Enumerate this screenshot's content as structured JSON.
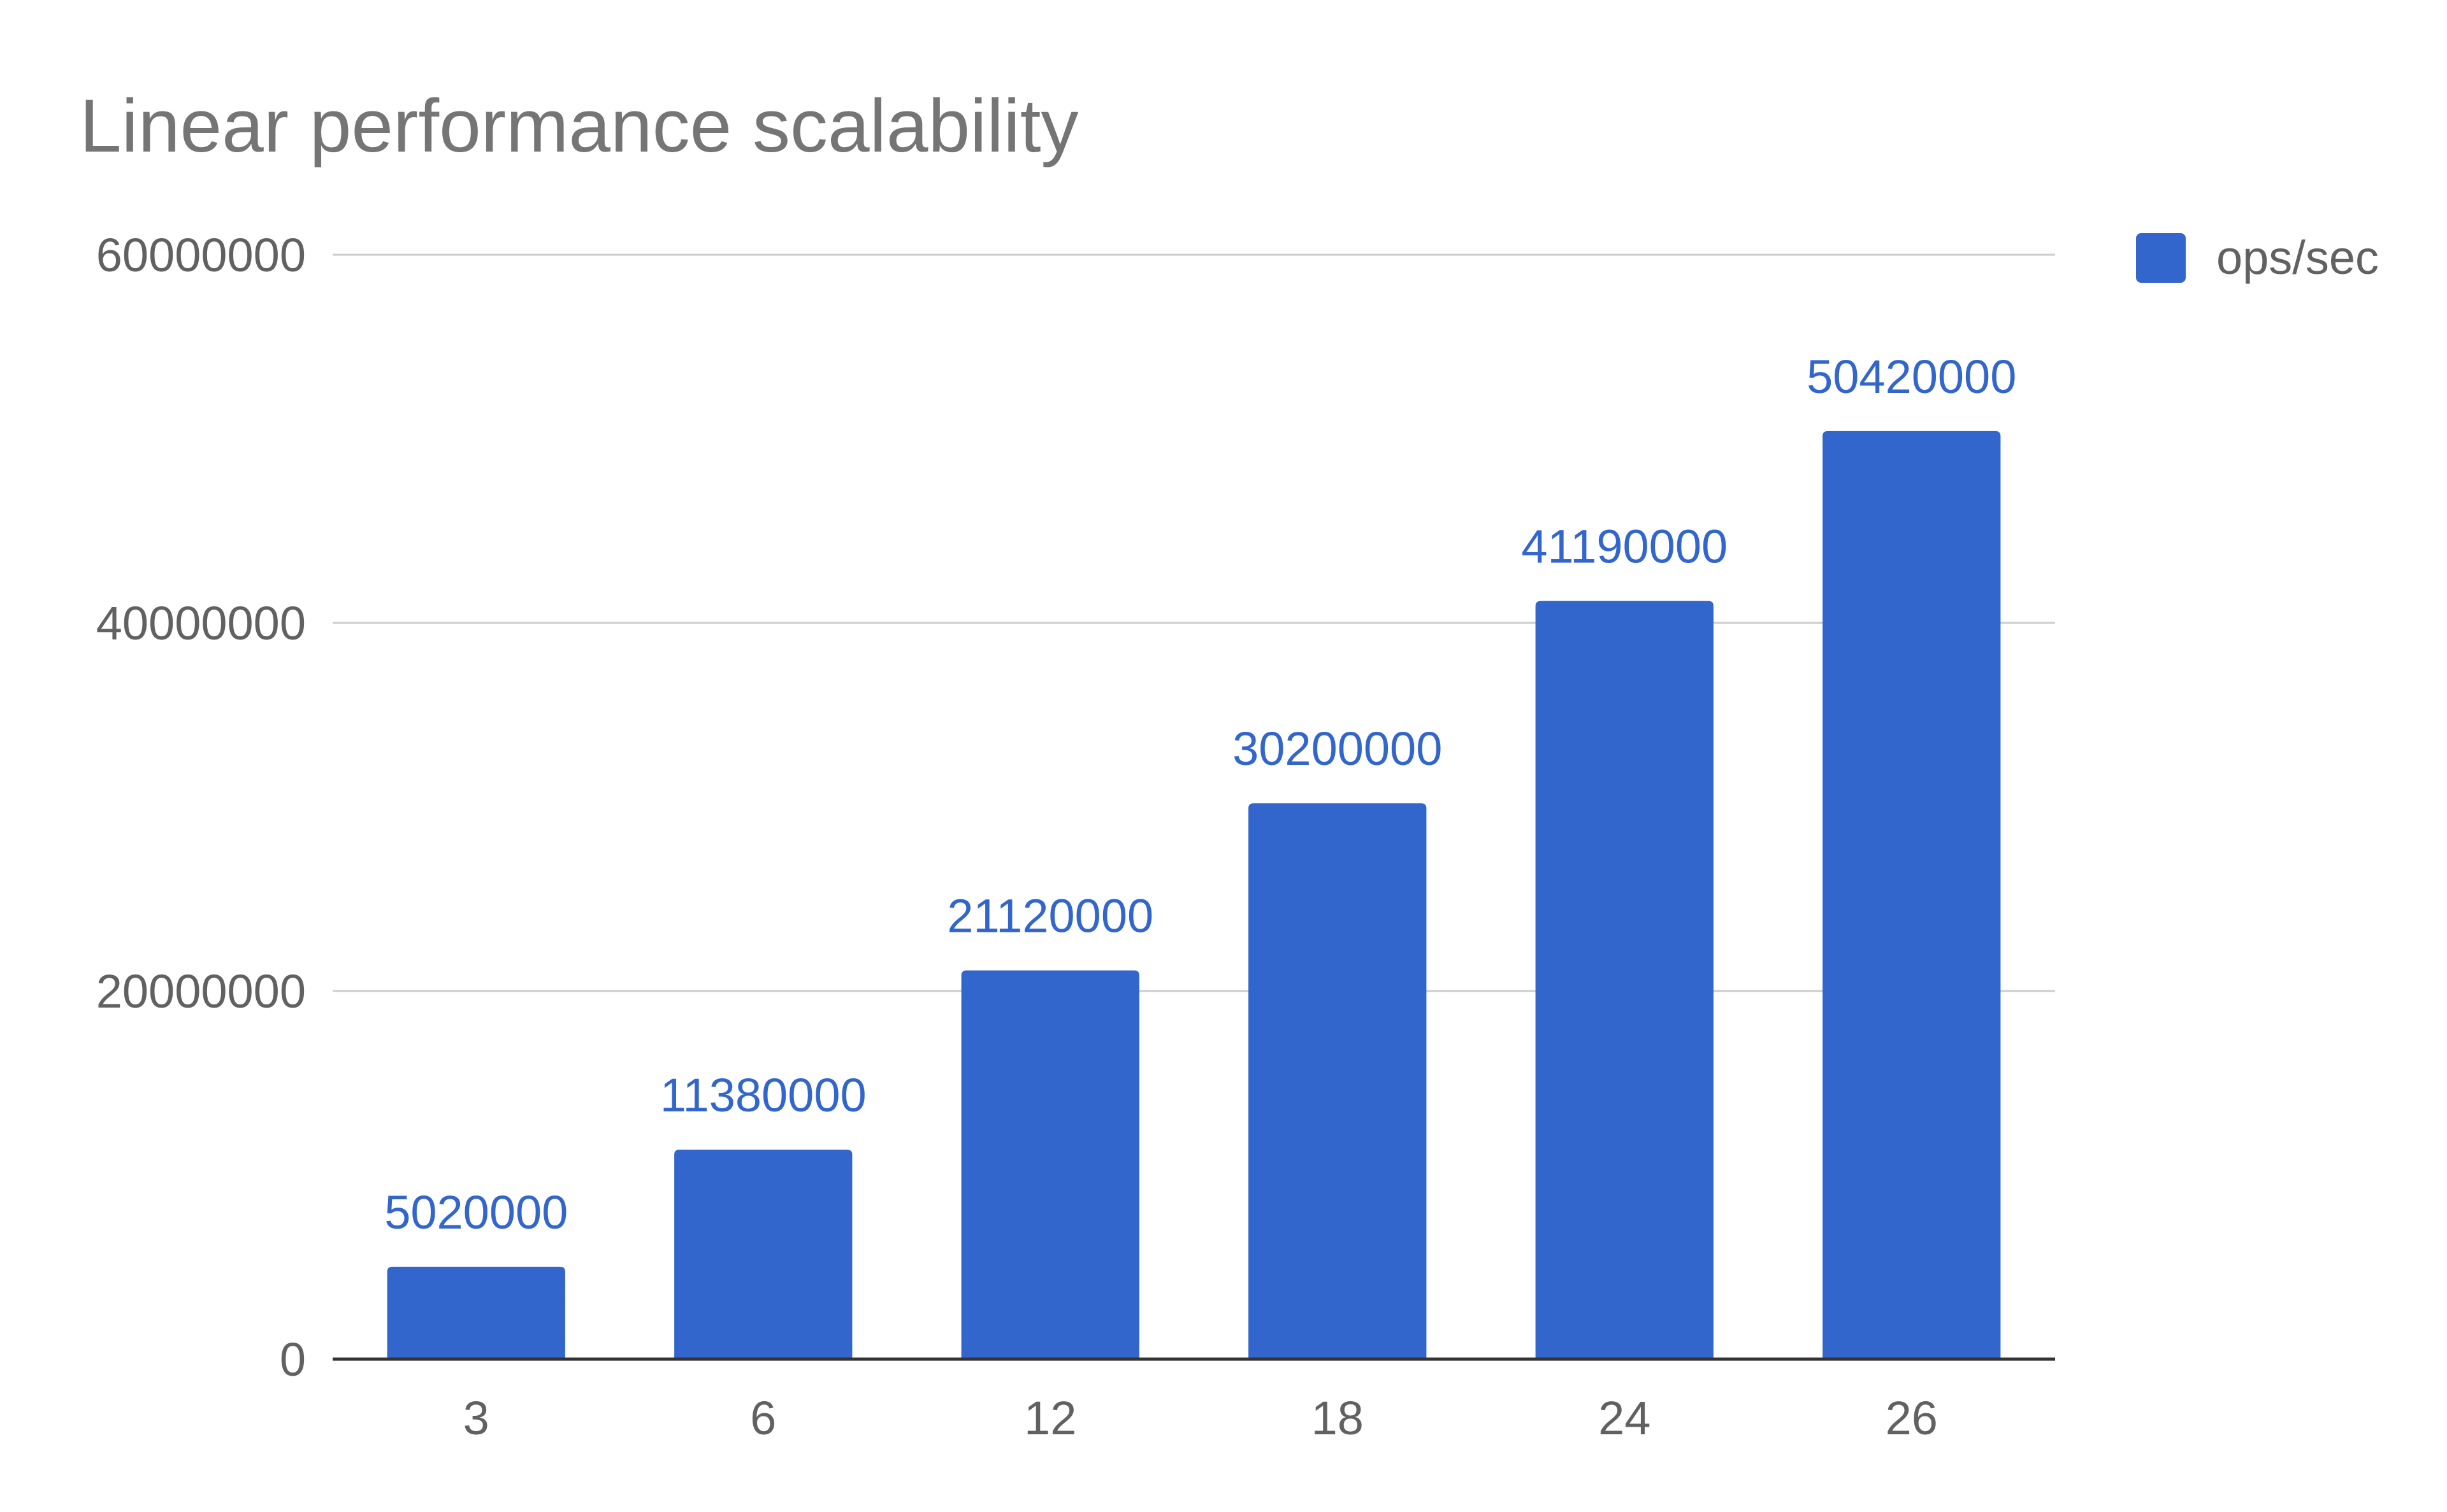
{
  "chart_data": {
    "type": "bar",
    "title": "Linear performance scalability",
    "xlabel": "",
    "ylabel": "",
    "categories": [
      "3",
      "6",
      "12",
      "18",
      "24",
      "26"
    ],
    "series": [
      {
        "name": "ops/sec",
        "values": [
          5020000,
          11380000,
          21120000,
          30200000,
          41190000,
          50420000
        ],
        "color": "#3366cc"
      }
    ],
    "data_labels": [
      "5020000",
      "11380000",
      "21120000",
      "30200000",
      "41190000",
      "50420000"
    ],
    "ylim": [
      0,
      60000000
    ],
    "yticks": [
      0,
      20000000,
      40000000,
      60000000
    ],
    "ytick_labels": [
      "0",
      "20000000",
      "40000000",
      "60000000"
    ],
    "grid": true,
    "legend": {
      "position": "right-top"
    }
  }
}
